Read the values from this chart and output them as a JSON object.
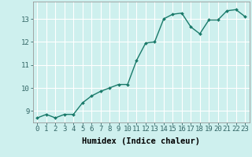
{
  "xlabel": "Humidex (Indice chaleur)",
  "x": [
    0,
    1,
    2,
    3,
    4,
    5,
    6,
    7,
    8,
    9,
    10,
    11,
    12,
    13,
    14,
    15,
    16,
    17,
    18,
    19,
    20,
    21,
    22,
    23
  ],
  "y": [
    8.7,
    8.85,
    8.7,
    8.85,
    8.85,
    9.35,
    9.65,
    9.85,
    10.0,
    10.15,
    10.15,
    11.2,
    11.95,
    12.0,
    13.0,
    13.2,
    13.25,
    12.65,
    12.35,
    12.95,
    12.95,
    13.35,
    13.4,
    13.1
  ],
  "line_color": "#1a7a6a",
  "marker": "D",
  "marker_size": 2.0,
  "bg_color": "#cef0ee",
  "grid_color": "#ffffff",
  "ylim": [
    8.5,
    13.75
  ],
  "yticks": [
    9,
    10,
    11,
    12,
    13
  ],
  "xticks": [
    0,
    1,
    2,
    3,
    4,
    5,
    6,
    7,
    8,
    9,
    10,
    11,
    12,
    13,
    14,
    15,
    16,
    17,
    18,
    19,
    20,
    21,
    22,
    23
  ],
  "tick_fontsize": 6.5,
  "xlabel_fontsize": 7.5,
  "line_width": 1.0
}
